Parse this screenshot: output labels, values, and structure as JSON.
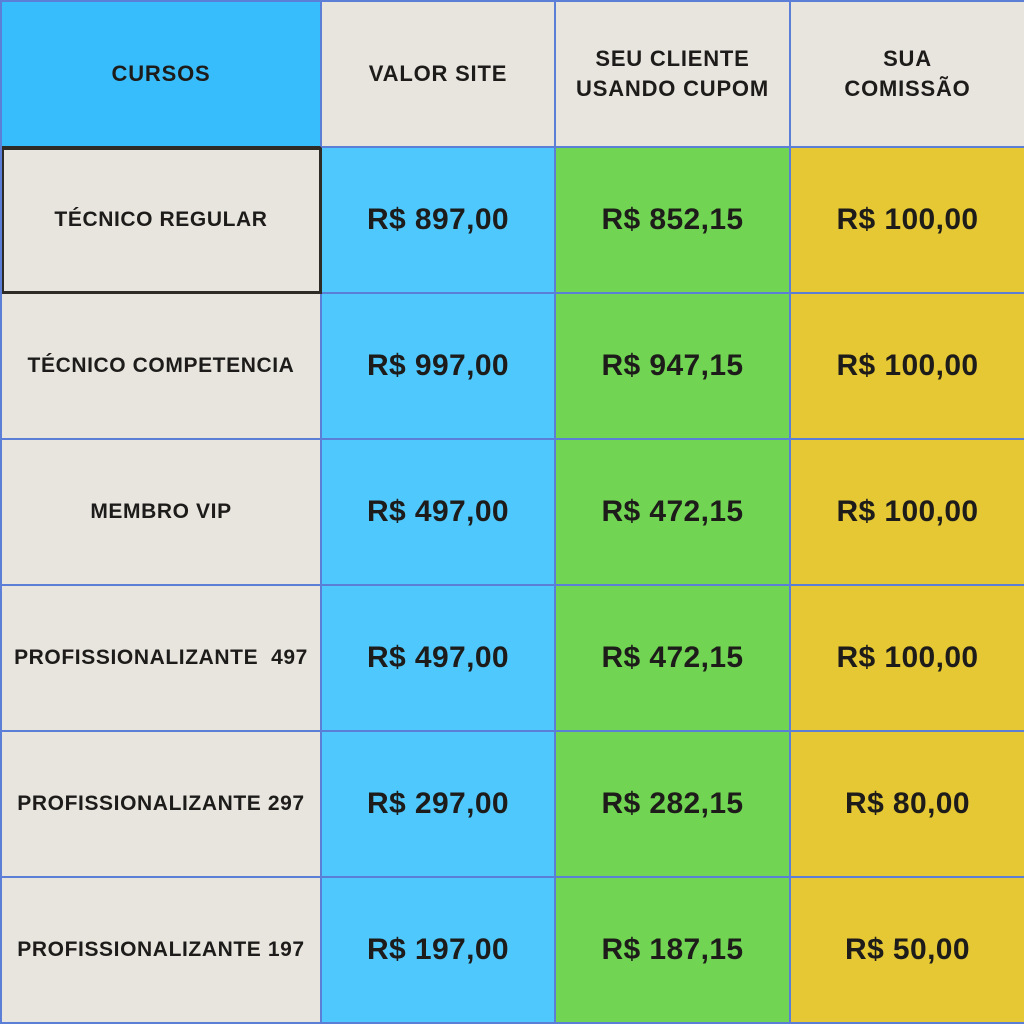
{
  "table": {
    "columns": [
      {
        "label_line1": "CURSOS",
        "label_line2": ""
      },
      {
        "label_line1": "VALOR SITE",
        "label_line2": ""
      },
      {
        "label_line1": "SEU CLIENTE",
        "label_line2": "USANDO CUPOM"
      },
      {
        "label_line1": "SUA",
        "label_line2": "COMISSÃO"
      }
    ],
    "rows": [
      {
        "curso": "TÉCNICO REGULAR",
        "valor_site": "R$ 897,00",
        "cliente_cupom": "R$ 852,15",
        "comissao": "R$ 100,00"
      },
      {
        "curso": "TÉCNICO COMPETENCIA",
        "valor_site": "R$ 997,00",
        "cliente_cupom": "R$ 947,15",
        "comissao": "R$ 100,00"
      },
      {
        "curso": "MEMBRO VIP",
        "valor_site": "R$ 497,00",
        "cliente_cupom": "R$ 472,15",
        "comissao": "R$ 100,00"
      },
      {
        "curso": "PROFISSIONALIZANTE  497",
        "valor_site": "R$ 497,00",
        "cliente_cupom": "R$ 472,15",
        "comissao": "R$ 100,00"
      },
      {
        "curso": "PROFISSIONALIZANTE 297",
        "valor_site": "R$ 297,00",
        "cliente_cupom": "R$ 282,15",
        "comissao": "R$ 80,00"
      },
      {
        "curso": "PROFISSIONALIZANTE 197",
        "valor_site": "R$ 197,00",
        "cliente_cupom": "R$ 187,15",
        "comissao": "R$ 50,00"
      }
    ]
  },
  "colors": {
    "header_blue": "#38bdfc",
    "valor_blue": "#4fc8fd",
    "cupom_green": "#71d452",
    "comissao_yellow": "#e5c834",
    "cream": "#e8e5de",
    "grid_border_blue": "#5b7ed6",
    "highlight_border_dark": "#2e2b26",
    "text": "#1d1c1a"
  },
  "chart_data": {
    "type": "table",
    "title": "",
    "columns": [
      "CURSOS",
      "VALOR SITE",
      "SEU CLIENTE USANDO CUPOM",
      "SUA COMISSÃO"
    ],
    "rows": [
      [
        "TÉCNICO REGULAR",
        "R$ 897,00",
        "R$ 852,15",
        "R$ 100,00"
      ],
      [
        "TÉCNICO COMPETENCIA",
        "R$ 997,00",
        "R$ 947,15",
        "R$ 100,00"
      ],
      [
        "MEMBRO VIP",
        "R$ 497,00",
        "R$ 472,15",
        "R$ 100,00"
      ],
      [
        "PROFISSIONALIZANTE  497",
        "R$ 497,00",
        "R$ 472,15",
        "R$ 100,00"
      ],
      [
        "PROFISSIONALIZANTE 297",
        "R$ 297,00",
        "R$ 282,15",
        "R$ 80,00"
      ],
      [
        "PROFISSIONALIZANTE 197",
        "R$ 197,00",
        "R$ 187,15",
        "R$ 50,00"
      ]
    ],
    "layout": {
      "grid": true,
      "header_row": true,
      "currency": "BRL"
    }
  }
}
